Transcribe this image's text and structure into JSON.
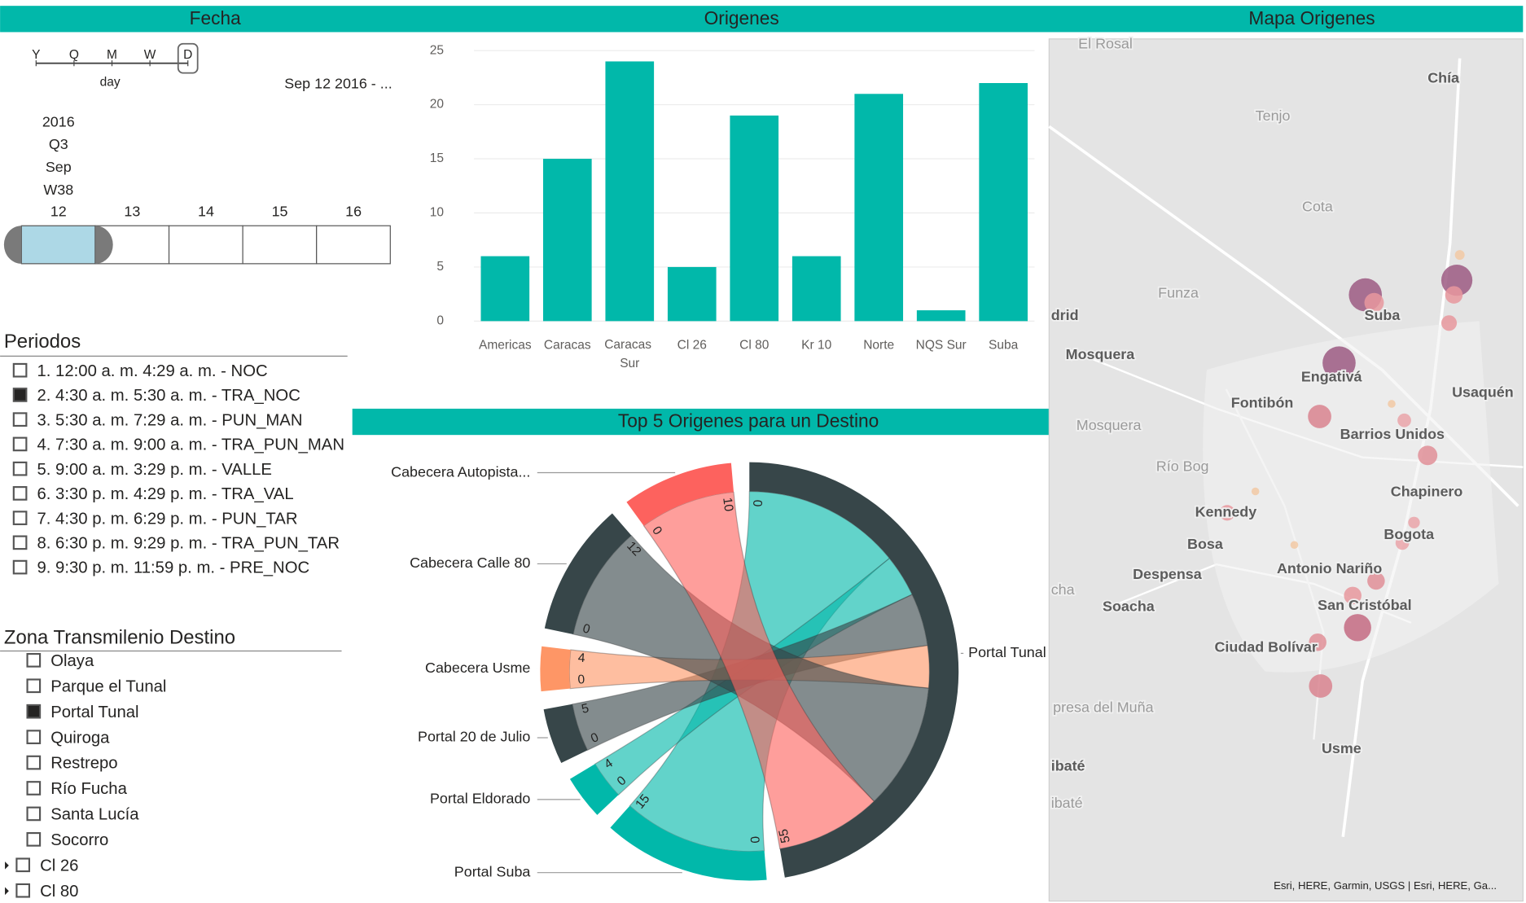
{
  "headers": {
    "fecha": "Fecha",
    "origenes": "Origenes",
    "mapa": "Mapa Origenes",
    "top5": "Top 5 Origenes para un Destino"
  },
  "date_slicer": {
    "levels": [
      "Y",
      "Q",
      "M",
      "W",
      "D"
    ],
    "level_caption": "day",
    "range": "Sep 12 2016 - ...",
    "hierarchy": [
      "2016",
      "Q3",
      "Sep",
      "W38"
    ],
    "days": [
      "12",
      "13",
      "14",
      "15",
      "16"
    ]
  },
  "periodos": {
    "title": "Periodos",
    "items": [
      {
        "label": "1. 12:00 a. m. 4:29 a. m. - NOC",
        "checked": false
      },
      {
        "label": "2. 4:30 a. m. 5:30 a. m. - TRA_NOC",
        "checked": true
      },
      {
        "label": "3. 5:30 a. m. 7:29 a. m. - PUN_MAN",
        "checked": false
      },
      {
        "label": "4. 7:30 a. m. 9:00 a. m. - TRA_PUN_MAN",
        "checked": false
      },
      {
        "label": "5. 9:00 a. m. 3:29 p. m. - VALLE",
        "checked": false
      },
      {
        "label": "6. 3:30 p. m. 4:29 p. m. - TRA_VAL",
        "checked": false
      },
      {
        "label": "7. 4:30 p. m. 6:29 p. m. - PUN_TAR",
        "checked": false
      },
      {
        "label": "8. 6:30 p. m. 9:29 p. m. - TRA_PUN_TAR",
        "checked": false
      },
      {
        "label": "9. 9:30 p. m. 11:59 p. m. - PRE_NOC",
        "checked": false
      }
    ]
  },
  "zonas": {
    "title": "Zona Transmilenio Destino",
    "items": [
      {
        "label": "Olaya",
        "checked": false,
        "expandable": false
      },
      {
        "label": "Parque el Tunal",
        "checked": false,
        "expandable": false
      },
      {
        "label": "Portal Tunal",
        "checked": true,
        "expandable": false
      },
      {
        "label": "Quiroga",
        "checked": false,
        "expandable": false
      },
      {
        "label": "Restrepo",
        "checked": false,
        "expandable": false
      },
      {
        "label": "Río Fucha",
        "checked": false,
        "expandable": false
      },
      {
        "label": "Santa Lucía",
        "checked": false,
        "expandable": false
      },
      {
        "label": "Socorro",
        "checked": false,
        "expandable": false
      },
      {
        "label": "Cl 26",
        "checked": false,
        "expandable": true
      },
      {
        "label": "Cl 80",
        "checked": false,
        "expandable": true
      }
    ]
  },
  "chart_data": {
    "type": "bar",
    "categories": [
      "Americas",
      "Caracas",
      "Caracas Sur",
      "Cl 26",
      "Cl 80",
      "Kr 10",
      "Norte",
      "NQS Sur",
      "Suba"
    ],
    "values": [
      6,
      15,
      24,
      5,
      19,
      6,
      21,
      1,
      22
    ],
    "color": "#01b8aa",
    "ylim": [
      0,
      25
    ],
    "yticks": [
      0,
      5,
      10,
      15,
      20,
      25
    ],
    "grid": true
  },
  "chord": {
    "target": {
      "name": "Portal Tunal",
      "color": "#374649",
      "ticks": [
        0,
        55
      ]
    },
    "sources": [
      {
        "name": "Cabecera Autopista...",
        "color": "#fd625e",
        "ticks": [
          0,
          10
        ]
      },
      {
        "name": "Cabecera Calle 80",
        "color": "#374649",
        "ticks": [
          0,
          12
        ]
      },
      {
        "name": "Cabecera Usme",
        "color": "#fe9666",
        "ticks": [
          0,
          4
        ]
      },
      {
        "name": "Portal 20 de Julio",
        "color": "#374649",
        "ticks": [
          0,
          5
        ]
      },
      {
        "name": "Portal Eldorado",
        "color": "#01b8aa",
        "ticks": [
          0,
          4
        ]
      },
      {
        "name": "Portal Suba",
        "color": "#01b8aa",
        "ticks": [
          0,
          15
        ]
      }
    ]
  },
  "map": {
    "places": [
      "El Rosal",
      "Chía",
      "Tenjo",
      "Cota",
      "Funza",
      "drid",
      "Suba",
      "Mosquera",
      "Engativá",
      "Usaquén",
      "Fontibón",
      "Mosquera",
      "Barrios Unidos",
      "Río Bog",
      "Chapinero",
      "Kennedy",
      "Bogota",
      "Bosa",
      "Despensa",
      "Antonio Nariño",
      "cha",
      "Soacha",
      "San Cristóbal",
      "Ciudad Bolívar",
      "presa del Muña",
      "Usme",
      "ibaté",
      "ibaté"
    ],
    "attribution": "Esri, HERE, Garmin, USGS | Esri, HERE, Ga..."
  }
}
